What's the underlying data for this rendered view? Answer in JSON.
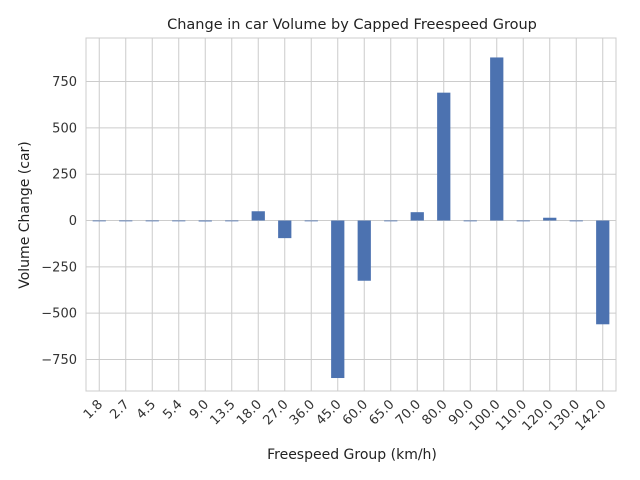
{
  "chart_data": {
    "type": "bar",
    "title": "Change in car Volume by Capped Freespeed Group",
    "xlabel": "Freespeed Group (km/h)",
    "ylabel": "Volume Change (car)",
    "categories": [
      "1.8",
      "2.7",
      "4.5",
      "5.4",
      "9.0",
      "13.5",
      "18.0",
      "27.0",
      "36.0",
      "45.0",
      "60.0",
      "65.0",
      "70.0",
      "80.0",
      "90.0",
      "100.0",
      "110.0",
      "120.0",
      "130.0",
      "142.0"
    ],
    "values": [
      0,
      0,
      0,
      0,
      -5,
      0,
      50,
      -95,
      0,
      -850,
      -325,
      0,
      45,
      690,
      0,
      880,
      0,
      15,
      0,
      -560
    ],
    "ylim": [
      -920,
      985
    ],
    "yticks": [
      -750,
      -500,
      -250,
      0,
      250,
      500,
      750
    ],
    "ytick_labels": [
      "−750",
      "−500",
      "−250",
      "0",
      "250",
      "500",
      "750"
    ],
    "grid": true,
    "bar_color": "#4c72b0",
    "grid_color": "#cccccc"
  }
}
